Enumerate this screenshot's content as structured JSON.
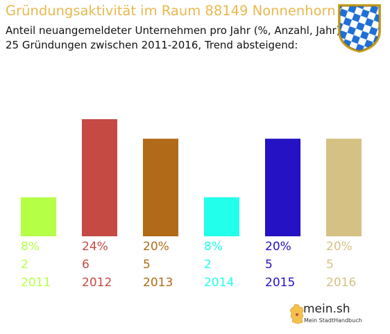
{
  "header": {
    "title": "Gründungsaktivität im Raum 88149 Nonnenhorn",
    "subtitle_line1": "Anteil neuangemeldeter Unternehmen pro Jahr (%, Anzahl, Jahr)",
    "subtitle_line2": "25 Gründungen zwischen 2011-2016, Trend absteigend:"
  },
  "coat_of_arms": {
    "icon": "bavarian-lozenge-coat-of-arms-icon",
    "colors": {
      "blue": "#1f6fd6",
      "white": "#ffffff",
      "gold": "#c9a227"
    }
  },
  "chart_data": {
    "type": "bar",
    "categories": [
      "2011",
      "2012",
      "2013",
      "2014",
      "2015",
      "2016"
    ],
    "values": [
      2,
      6,
      5,
      2,
      5,
      5
    ],
    "percent_labels": [
      "8%",
      "24%",
      "20%",
      "8%",
      "20%",
      "20%"
    ],
    "count_labels": [
      "2",
      "6",
      "5",
      "2",
      "5",
      "5"
    ],
    "colors": [
      "#b5ff47",
      "#c54a44",
      "#b06a18",
      "#22ffea",
      "#2412c4",
      "#d5c184"
    ],
    "ylim": [
      0,
      6
    ],
    "grid": false,
    "legend": "none"
  },
  "branding": {
    "name": "mein.sh",
    "tagline": "Mein StadtHandbuch",
    "icon": "germany-map-icon"
  }
}
